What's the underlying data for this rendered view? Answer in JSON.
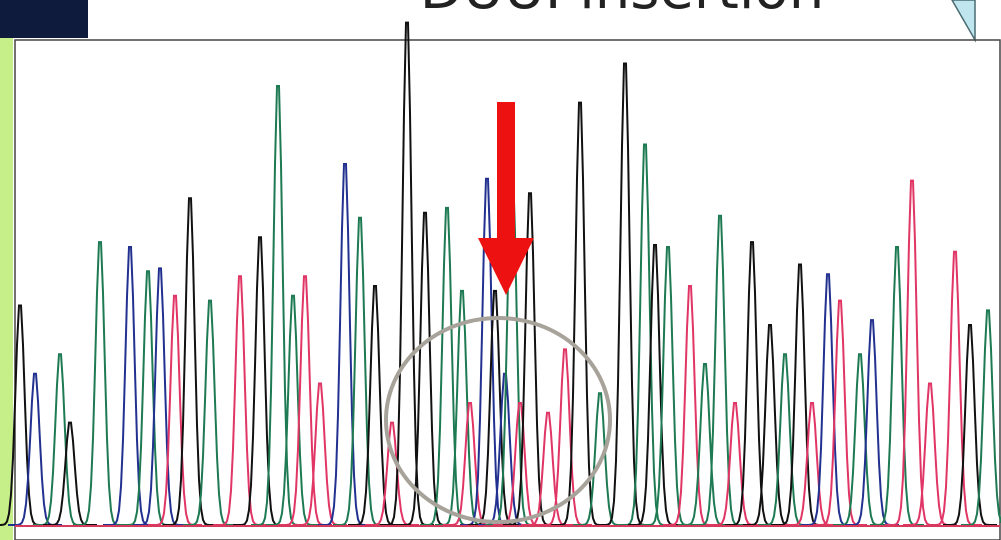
{
  "slide": {
    "title": "DUUI insertion"
  }
}
